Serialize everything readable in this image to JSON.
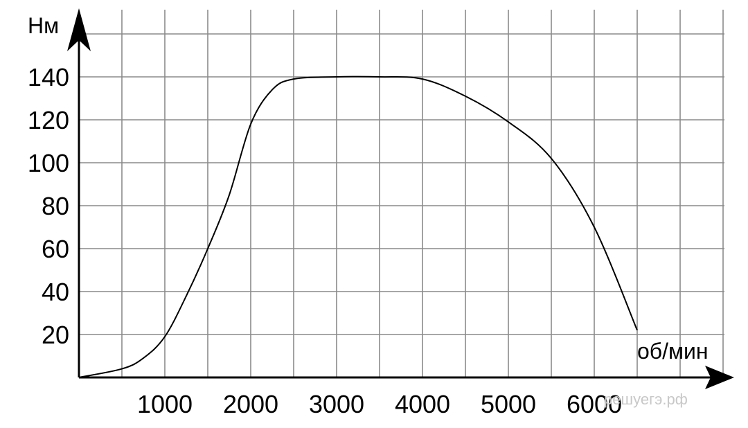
{
  "watermark": "решуегэ.рф",
  "chart_data": {
    "type": "line",
    "xlabel": "об/мин",
    "ylabel": "Нм",
    "xlim": [
      0,
      7500
    ],
    "ylim": [
      0,
      160
    ],
    "x_ticks": [
      1000,
      2000,
      3000,
      4000,
      5000,
      6000
    ],
    "x_tick_labels": [
      "1000",
      "2000",
      "3000",
      "4000",
      "5000",
      "6000"
    ],
    "y_ticks": [
      20,
      40,
      60,
      80,
      100,
      120,
      140
    ],
    "y_tick_labels": [
      "20",
      "40",
      "60",
      "80",
      "100",
      "120",
      "140"
    ],
    "grid": true,
    "series": [
      {
        "color": "#000000",
        "x": [
          0,
          500,
          750,
          1000,
          1250,
          1500,
          1750,
          2000,
          2250,
          2500,
          3000,
          3500,
          4000,
          4500,
          5000,
          5500,
          6000,
          6500
        ],
        "y": [
          0,
          4,
          9,
          19,
          38,
          60,
          85,
          118,
          134,
          139,
          140,
          140,
          139,
          131,
          119,
          102,
          70,
          22
        ]
      }
    ]
  }
}
